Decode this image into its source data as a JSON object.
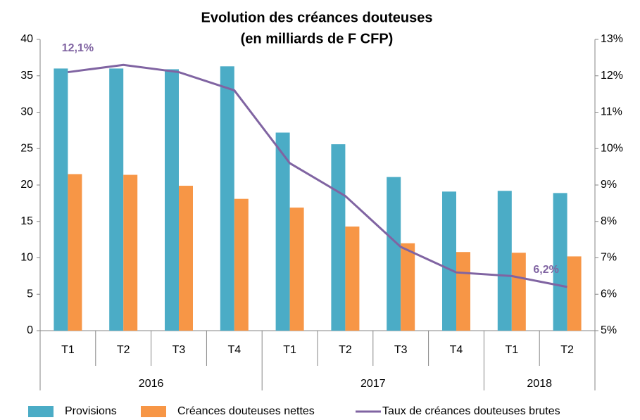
{
  "chart_data": {
    "type": "bar-line",
    "title": "Evolution des créances douteuses",
    "subtitle": "(en milliards de F CFP)",
    "groups": [
      {
        "name": "2016",
        "categories": [
          "T1",
          "T2",
          "T3",
          "T4"
        ]
      },
      {
        "name": "2017",
        "categories": [
          "T1",
          "T2",
          "T3",
          "T4"
        ]
      },
      {
        "name": "2018",
        "categories": [
          "T1",
          "T2"
        ]
      }
    ],
    "series": [
      {
        "name": "Provisions",
        "type": "bar",
        "color": "#4bacc6",
        "values": [
          36.0,
          36.0,
          35.9,
          36.3,
          27.2,
          25.6,
          21.1,
          19.1,
          19.2,
          18.9
        ]
      },
      {
        "name": "Créances douteuses nettes",
        "type": "bar",
        "color": "#f79646",
        "values": [
          21.5,
          21.4,
          19.9,
          18.1,
          16.9,
          14.3,
          12.0,
          10.8,
          10.7,
          10.2
        ]
      },
      {
        "name": "Taux de créances douteuses brutes",
        "type": "line",
        "axis": "y2",
        "color": "#8064a2",
        "values": [
          12.1,
          12.3,
          12.1,
          11.6,
          9.6,
          8.7,
          7.3,
          6.6,
          6.5,
          6.2
        ],
        "value_labels": [
          "12,1%",
          null,
          null,
          null,
          null,
          null,
          null,
          null,
          null,
          "6,2%"
        ]
      }
    ],
    "ylim": [
      0,
      40
    ],
    "yticks": [
      0,
      5,
      10,
      15,
      20,
      25,
      30,
      35,
      40
    ],
    "y2lim": [
      5,
      13
    ],
    "y2ticks": [
      {
        "value": 5,
        "label": "5%"
      },
      {
        "value": 6,
        "label": "6%"
      },
      {
        "value": 7,
        "label": "7%"
      },
      {
        "value": 8,
        "label": "8%"
      },
      {
        "value": 9,
        "label": "9%"
      },
      {
        "value": 10,
        "label": "10%"
      },
      {
        "value": 11,
        "label": "11%"
      },
      {
        "value": 12,
        "label": "12%"
      },
      {
        "value": 13,
        "label": "13%"
      }
    ],
    "grid": false,
    "legend": "bottom"
  }
}
